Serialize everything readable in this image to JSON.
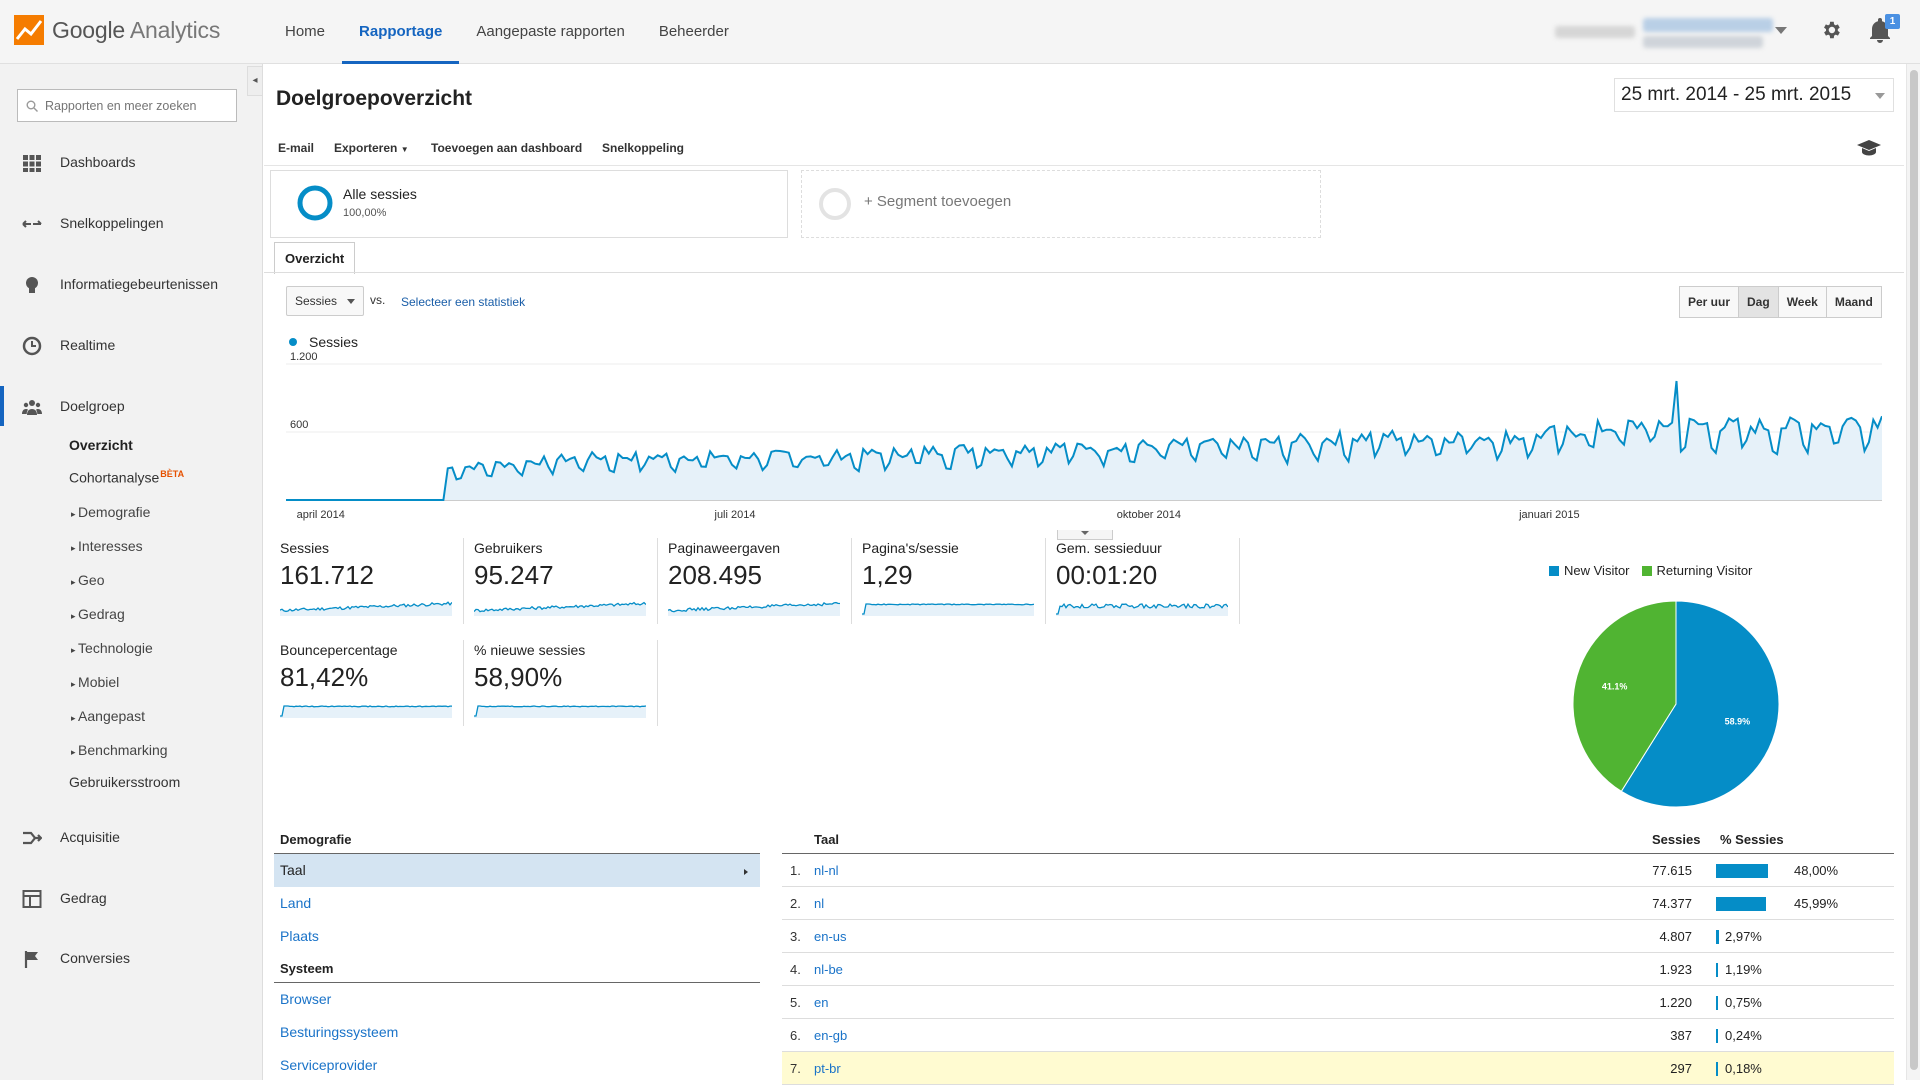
{
  "app": {
    "logo_text": "Google Analytics",
    "logo_brand": "Google",
    "logo_product": "Analytics"
  },
  "topnav": {
    "items": [
      "Home",
      "Rapportage",
      "Aangepaste rapporten",
      "Beheerder"
    ],
    "active": "Rapportage"
  },
  "header": {
    "notification_count": "1"
  },
  "sidebar": {
    "search_placeholder": "Rapporten en meer zoeken",
    "main_items": [
      {
        "label": "Dashboards",
        "icon": "grid-icon"
      },
      {
        "label": "Snelkoppelingen",
        "icon": "shortcut-arrows-icon"
      },
      {
        "label": "Informatiegebeurtenissen",
        "icon": "lightbulb-icon"
      },
      {
        "label": "Realtime",
        "icon": "clock-icon"
      },
      {
        "label": "Doelgroep",
        "icon": "people-icon"
      }
    ],
    "audience_sub": {
      "overview": "Overzicht",
      "cohort": "Cohortanalyse",
      "beta": "BÈTA",
      "items": [
        "Demografie",
        "Interesses",
        "Geo",
        "Gedrag",
        "Technologie",
        "Mobiel",
        "Aangepast",
        "Benchmarking"
      ],
      "flow": "Gebruikersstroom"
    },
    "bottom_items": [
      {
        "label": "Acquisitie",
        "icon": "acquisition-icon"
      },
      {
        "label": "Gedrag",
        "icon": "behavior-icon"
      },
      {
        "label": "Conversies",
        "icon": "flag-icon"
      }
    ]
  },
  "page": {
    "title": "Doelgroepoverzicht",
    "date_range": "25 mrt. 2014 - 25 mrt. 2015",
    "actions": [
      "E-mail",
      "Exporteren",
      "Toevoegen aan dashboard",
      "Snelkoppeling"
    ],
    "segment": {
      "name": "Alle sessies",
      "pct": "100,00%",
      "add": "+ Segment toevoegen"
    },
    "tab": "Overzicht",
    "metric_select": "Sessies",
    "vs": "vs.",
    "select_stat": "Selecteer een statistiek",
    "granularity": [
      "Per uur",
      "Dag",
      "Week",
      "Maand"
    ],
    "granularity_active": "Dag"
  },
  "chart_data": [
    {
      "type": "area",
      "series": [
        {
          "name": "Sessies",
          "color": "#058dc7"
        }
      ],
      "ytick_labels": [
        "1.200",
        "600"
      ],
      "ylim": [
        0,
        1200
      ],
      "xtick_labels": [
        "april 2014",
        "juli 2014",
        "oktober 2014",
        "januari 2015"
      ],
      "x_range": [
        "2014-03-25",
        "2015-03-25"
      ],
      "trend_points": [
        [
          "2014-03-25",
          0
        ],
        [
          "2014-04-30",
          0
        ],
        [
          "2014-05-01",
          280
        ],
        [
          "2014-06-01",
          380
        ],
        [
          "2014-07-01",
          390
        ],
        [
          "2014-08-01",
          400
        ],
        [
          "2014-09-01",
          460
        ],
        [
          "2014-10-01",
          480
        ],
        [
          "2014-11-01",
          500
        ],
        [
          "2014-12-01",
          570
        ],
        [
          "2015-01-01",
          560
        ],
        [
          "2015-01-15",
          620
        ],
        [
          "2015-02-01",
          680
        ],
        [
          "2015-02-15",
          660
        ],
        [
          "2015-03-01",
          650
        ],
        [
          "2015-03-25",
          720
        ]
      ],
      "peak": [
        "2015-02-06",
        1050
      ]
    },
    {
      "type": "pie",
      "labels": [
        "New Visitor",
        "Returning Visitor"
      ],
      "values": [
        58.9,
        41.1
      ],
      "data_labels": [
        "58.9%",
        "41.1%"
      ],
      "colors": [
        "#058dc7",
        "#50b432"
      ]
    }
  ],
  "metrics": [
    {
      "label": "Sessies",
      "value": "161.712",
      "spark": "rising"
    },
    {
      "label": "Gebruikers",
      "value": "95.247",
      "spark": "rising"
    },
    {
      "label": "Paginaweergaven",
      "value": "208.495",
      "spark": "rising"
    },
    {
      "label": "Pagina's/sessie",
      "value": "1,29",
      "spark": "flat"
    },
    {
      "label": "Gem. sessieduur",
      "value": "00:01:20",
      "spark": "flat-noisy"
    },
    {
      "label": "Bouncepercentage",
      "value": "81,42%",
      "spark": "flat"
    },
    {
      "label": "% nieuwe sessies",
      "value": "58,90%",
      "spark": "flat"
    }
  ],
  "demographics": {
    "header": "Demografie",
    "items": [
      "Taal",
      "Land",
      "Plaats"
    ],
    "selected": "Taal",
    "system_header": "Systeem",
    "system_items": [
      "Browser",
      "Besturingssysteem",
      "Serviceprovider"
    ]
  },
  "language_table": {
    "headers": [
      "Taal",
      "Sessies",
      "% Sessies"
    ],
    "rows": [
      {
        "idx": "1.",
        "name": "nl-nl",
        "sessions": "77.615",
        "pct": "48,00%",
        "share": 48.0
      },
      {
        "idx": "2.",
        "name": "nl",
        "sessions": "74.377",
        "pct": "45,99%",
        "share": 45.99
      },
      {
        "idx": "3.",
        "name": "en-us",
        "sessions": "4.807",
        "pct": "2,97%",
        "share": 2.97
      },
      {
        "idx": "4.",
        "name": "nl-be",
        "sessions": "1.923",
        "pct": "1,19%",
        "share": 1.19
      },
      {
        "idx": "5.",
        "name": "en",
        "sessions": "1.220",
        "pct": "0,75%",
        "share": 0.75
      },
      {
        "idx": "6.",
        "name": "en-gb",
        "sessions": "387",
        "pct": "0,24%",
        "share": 0.24
      },
      {
        "idx": "7.",
        "name": "pt-br",
        "sessions": "297",
        "pct": "0,18%",
        "share": 0.18
      }
    ]
  }
}
